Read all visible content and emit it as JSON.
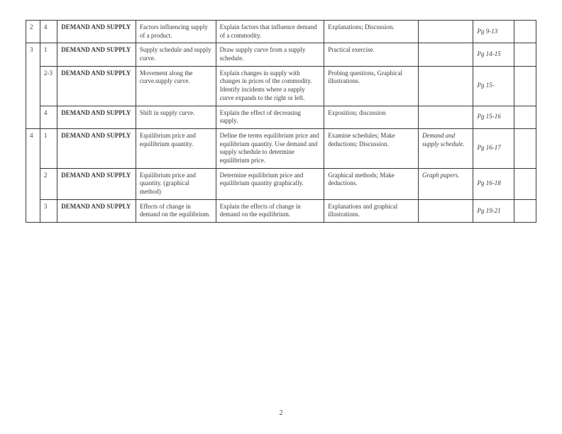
{
  "page_number": "2",
  "rows": [
    {
      "wk": "2",
      "ls": "4",
      "topic": "DEMAND AND SUPPLY",
      "subtopic": "Factors influencing supply of a product.",
      "objectives": "Explain factors that influence demand of a commodity.",
      "activities": "Explanations; Discussion.",
      "resources": "",
      "pages": "Pg 9-13"
    },
    {
      "wk": "3",
      "ls": "1",
      "topic": "DEMAND AND SUPPLY",
      "subtopic": "Supply schedule and supply curve.",
      "objectives": "Draw  supply curve from a supply schedule.",
      "activities": "Practical exercise.",
      "resources": "",
      "pages": "Pg 14-15"
    },
    {
      "wk": "",
      "ls": "2-3",
      "topic": "DEMAND AND SUPPLY",
      "subtopic": "Movement along the curve.supply curve.",
      "objectives": "Explain changes in supply with changes in prices of the commodity. Identify incidents where a supply curve expands to the right or left.",
      "activities": "Probing questions, Graphical illustrations.",
      "resources": "",
      "pages": "Pg 15-"
    },
    {
      "wk": "",
      "ls": "4",
      "topic": "DEMAND AND SUPPLY",
      "subtopic": "Shift in supply curve.",
      "objectives": "Explain the effect of decreasing supply.",
      "activities": "Exposition; discussion",
      "resources": "",
      "pages": "Pg 15-16"
    },
    {
      "wk": "4",
      "ls": "1",
      "topic": "DEMAND AND SUPPLY",
      "subtopic": "Equilibrium price and equilibrium quantity.",
      "objectives": "Define the terms equilibrium price and equilibrium quantity. Use demand and supply schedule to determine equilibrium price.",
      "activities": "Examine schedules; Make deductions; Discussion.",
      "resources": "Demand and supply schedule.",
      "pages": "Pg 16-17"
    },
    {
      "wk": "",
      "ls": "2",
      "topic": "DEMAND AND SUPPLY",
      "subtopic": "Equilibrium price and quantity. (graphical method)",
      "objectives": "Determine equilibrium price and equilibrium quantity graphically.",
      "activities": "Graphical methods; Make deductions.",
      "resources": "Graph papers.",
      "pages": "Pg 16-18"
    },
    {
      "wk": "",
      "ls": "3",
      "topic": "DEMAND AND SUPPLY",
      "subtopic": "Effects of change in demand on the equilibrium.",
      "objectives": "Explain the effects of change in demand on the equilibrium.",
      "activities": "Explanations and graphical illustrations.",
      "resources": "",
      "pages": "Pg 19-21"
    }
  ]
}
